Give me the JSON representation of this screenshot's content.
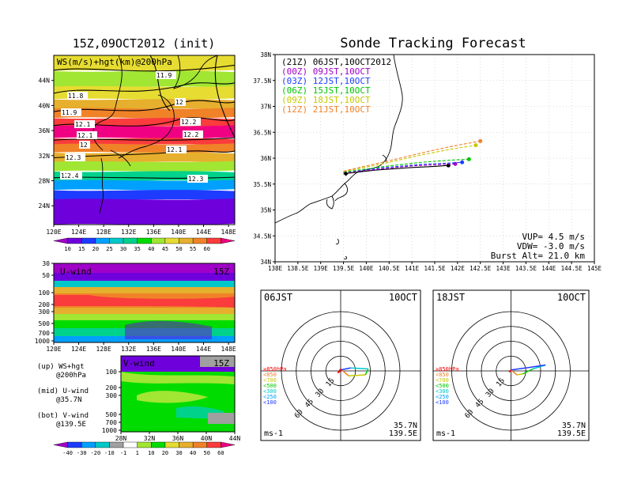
{
  "titles": {
    "left": "15Z,09OCT2012 (init)",
    "right": "Sonde Tracking Forecast"
  },
  "panel_ws": {
    "label": "WS(m/s)+hgt(km)@200hPa",
    "xticks": [
      "120E",
      "124E",
      "128E",
      "132E",
      "136E",
      "140E",
      "144E",
      "148E"
    ],
    "yticks": [
      "44N",
      "40N",
      "36N",
      "32N",
      "28N",
      "24N"
    ],
    "contour_labels": [
      "11.9",
      "11.8",
      "11.9",
      "12",
      "12.1",
      "12.2",
      "12.2",
      "12.1",
      "12",
      "12.1",
      "12.3",
      "12.3",
      "12.4",
      "2.4"
    ],
    "colorbar": [
      "10",
      "15",
      "20",
      "25",
      "30",
      "35",
      "40",
      "45",
      "50",
      "55",
      "60"
    ],
    "colors": [
      "#a000c8",
      "#6e00dc",
      "#1e3cff",
      "#00a0ff",
      "#00c8c8",
      "#00d28c",
      "#00dc00",
      "#a0e632",
      "#e6dc32",
      "#e6af2d",
      "#f08228",
      "#fa3c3c",
      "#f00082"
    ]
  },
  "panel_u": {
    "label": "U-wind",
    "time": "15Z",
    "xticks": [
      "120E",
      "124E",
      "128E",
      "132E",
      "136E",
      "140E",
      "144E",
      "148E"
    ],
    "yticks": [
      "30",
      "50",
      "100",
      "200",
      "300",
      "500",
      "700",
      "1000"
    ]
  },
  "panel_v": {
    "label": "V-wind",
    "time": "15Z",
    "xticks": [
      "28N",
      "32N",
      "36N",
      "40N",
      "44N"
    ],
    "yticks": [
      "100",
      "200",
      "300",
      "500",
      "700",
      "1000"
    ]
  },
  "legend_notes": [
    [
      "(up) WS+hgt",
      "@200hPa"
    ],
    [
      "(mid) U-wind",
      "@35.7N"
    ],
    [
      "(bot) V-wind",
      "@139.5E"
    ]
  ],
  "bottom_colorbar": [
    "-40",
    "-30",
    "-20",
    "-10",
    "-1",
    "1",
    "10",
    "20",
    "30",
    "40",
    "50",
    "60"
  ],
  "track": {
    "entries": [
      {
        "text": "(21Z) 06JST,10OCT2012",
        "color": "#000000"
      },
      {
        "text": "(00Z) 09JST,10OCT",
        "color": "#a000c8"
      },
      {
        "text": "(03Z) 12JST,10OCT",
        "color": "#1e3cff"
      },
      {
        "text": "(06Z) 15JST,10OCT",
        "color": "#00c800"
      },
      {
        "text": "(09Z) 18JST,10OCT",
        "color": "#c8c800"
      },
      {
        "text": "(12Z) 21JST,10OCT",
        "color": "#f08228"
      }
    ],
    "xticks": [
      "138E",
      "138.5E",
      "139E",
      "139.5E",
      "140E",
      "140.5E",
      "141E",
      "141.5E",
      "142E",
      "142.5E",
      "143E",
      "143.5E",
      "144E",
      "144.5E",
      "145E"
    ],
    "yticks": [
      "38N",
      "37.5N",
      "37N",
      "36.5N",
      "36N",
      "35.5N",
      "35N",
      "34.5N",
      "34N"
    ],
    "vup": "VUP= 4.5 m/s",
    "vdw": "VDW= -3.0 m/s",
    "burst": "Burst Alt= 21.0 km"
  },
  "polar_left": {
    "time": "06JST",
    "date": "10OCT",
    "rings": [
      "15",
      "30",
      "45",
      "60"
    ],
    "levels": [
      {
        "text": "≥850hPa",
        "color": "#ff0000"
      },
      {
        "text": "<850",
        "color": "#f08228"
      },
      {
        "text": "<700",
        "color": "#c8c800"
      },
      {
        "text": "<500",
        "color": "#00c800"
      },
      {
        "text": "<300",
        "color": "#00c8c8"
      },
      {
        "text": "<250",
        "color": "#00a0ff"
      },
      {
        "text": "<100",
        "color": "#1e3cff"
      }
    ],
    "unit": "ms-1",
    "lat": "35.7N",
    "lon": "139.5E"
  },
  "polar_right": {
    "time": "18JST",
    "date": "10OCT",
    "rings": [
      "15",
      "30",
      "45",
      "60"
    ],
    "levels": [
      {
        "text": "≥850hPa",
        "color": "#ff0000"
      },
      {
        "text": "<850",
        "color": "#f08228"
      },
      {
        "text": "<700",
        "color": "#c8c800"
      },
      {
        "text": "<500",
        "color": "#00c800"
      },
      {
        "text": "<300",
        "color": "#00c8c8"
      },
      {
        "text": "<250",
        "color": "#00a0ff"
      },
      {
        "text": "<100",
        "color": "#1e3cff"
      }
    ],
    "unit": "ms-1",
    "lat": "35.7N",
    "lon": "139.5E"
  },
  "chart_data": [
    {
      "type": "heatmap",
      "title": "WS(m/s)+hgt(km)@200hPa",
      "xlim": [
        120,
        149
      ],
      "ylim": [
        21,
        48
      ],
      "x_ticks": [
        120,
        124,
        128,
        132,
        136,
        140,
        144,
        148
      ],
      "y_ticks": [
        24,
        28,
        32,
        36,
        40,
        44
      ],
      "jet_core_lat": 35.5,
      "jet_max_ms": 60,
      "height_contours_km": [
        11.8,
        11.9,
        12,
        12.1,
        12.2,
        12.3,
        12.4
      ]
    },
    {
      "type": "heatmap",
      "title": "U-wind",
      "xlim": [
        120,
        149
      ],
      "y_levels_hPa": [
        30,
        50,
        100,
        200,
        300,
        500,
        700,
        1000
      ],
      "max_level_hPa": 200
    },
    {
      "type": "heatmap",
      "title": "V-wind",
      "xlim": [
        28,
        44
      ],
      "y_levels_hPa": [
        100,
        200,
        300,
        500,
        700,
        1000
      ]
    },
    {
      "type": "line",
      "title": "Sonde Tracking Forecast",
      "xlim": [
        138,
        145
      ],
      "ylim": [
        34,
        38
      ],
      "launch": [
        139.5,
        35.7
      ],
      "series": [
        {
          "name": "(21Z) 06JST,10OCT2012",
          "x": [
            139.5,
            140.2,
            141.0,
            141.5,
            141.8
          ],
          "y": [
            35.7,
            35.77,
            35.82,
            35.84,
            35.86
          ]
        },
        {
          "name": "(00Z) 09JST,10OCT",
          "x": [
            139.5,
            140.3,
            141.0,
            141.5,
            141.95
          ],
          "y": [
            35.72,
            35.79,
            35.85,
            35.87,
            35.89
          ]
        },
        {
          "name": "(03Z) 12JST,10OCT",
          "x": [
            139.5,
            140.3,
            141.2,
            141.7,
            142.1
          ],
          "y": [
            35.73,
            35.81,
            35.88,
            35.9,
            35.92
          ]
        },
        {
          "name": "(06Z) 15JST,10OCT",
          "x": [
            139.5,
            140.4,
            141.2,
            141.8,
            142.25
          ],
          "y": [
            35.73,
            35.84,
            35.92,
            35.96,
            35.98
          ]
        },
        {
          "name": "(09Z) 18JST,10OCT",
          "x": [
            139.5,
            140.4,
            141.3,
            141.9,
            142.4
          ],
          "y": [
            35.74,
            35.9,
            36.08,
            36.18,
            36.25
          ]
        },
        {
          "name": "(12Z) 21JST,10OCT",
          "x": [
            139.5,
            140.5,
            141.4,
            142.0,
            142.5
          ],
          "y": [
            35.75,
            35.95,
            36.14,
            36.25,
            36.33
          ]
        }
      ]
    },
    {
      "type": "line",
      "title": "06JST",
      "ring_values": [
        15,
        30,
        45,
        60
      ],
      "hodograph_uv": [
        [
          0,
          0
        ],
        [
          -3,
          -2
        ],
        [
          0,
          2
        ],
        [
          8,
          -5
        ],
        [
          25,
          -4
        ],
        [
          28,
          2
        ],
        [
          10,
          3
        ],
        [
          0,
          1
        ]
      ]
    },
    {
      "type": "line",
      "title": "18JST",
      "ring_values": [
        15,
        30,
        45,
        60
      ],
      "hodograph_uv": [
        [
          0,
          0
        ],
        [
          -2,
          -1
        ],
        [
          0,
          1
        ],
        [
          6,
          -4
        ],
        [
          12,
          -3
        ],
        [
          22,
          2
        ],
        [
          35,
          6
        ],
        [
          15,
          3
        ],
        [
          0,
          1
        ]
      ]
    }
  ]
}
